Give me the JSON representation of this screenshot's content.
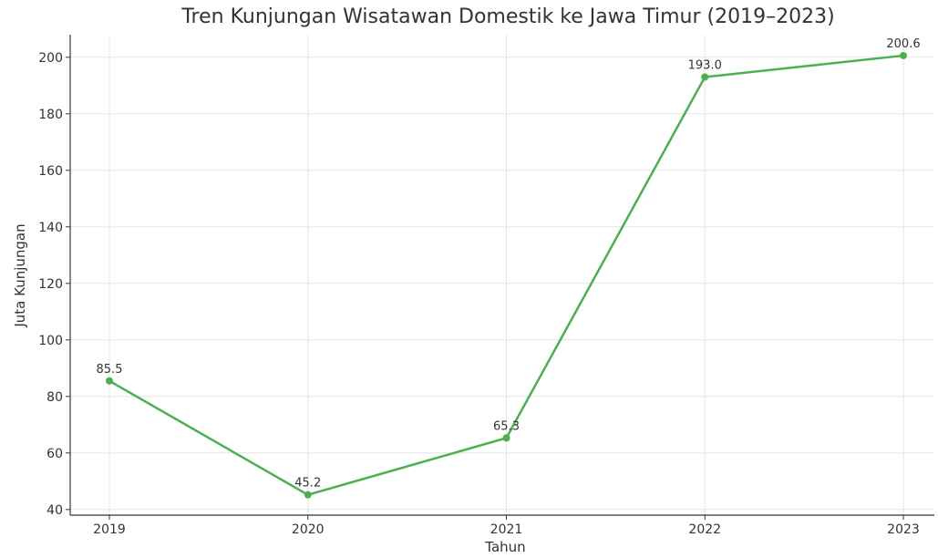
{
  "chart_data": {
    "type": "line",
    "title": "Tren Kunjungan Wisatawan Domestik ke Jawa Timur (2019–2023)",
    "xlabel": "Tahun",
    "ylabel": "Juta Kunjungan",
    "categories": [
      "2019",
      "2020",
      "2021",
      "2022",
      "2023"
    ],
    "series": [
      {
        "values": [
          85.5,
          45.2,
          65.3,
          193.0,
          200.6
        ],
        "data_labels": [
          "85.5",
          "45.2",
          "65.3",
          "193.0",
          "200.6"
        ]
      }
    ],
    "ylim": [
      38,
      208
    ],
    "yticks": [
      40,
      60,
      80,
      100,
      120,
      140,
      160,
      180,
      200
    ],
    "grid": true,
    "markers": true,
    "colors": {
      "line": "#4caf50",
      "grid": "#e6e6e6",
      "axis": "#333333"
    }
  }
}
